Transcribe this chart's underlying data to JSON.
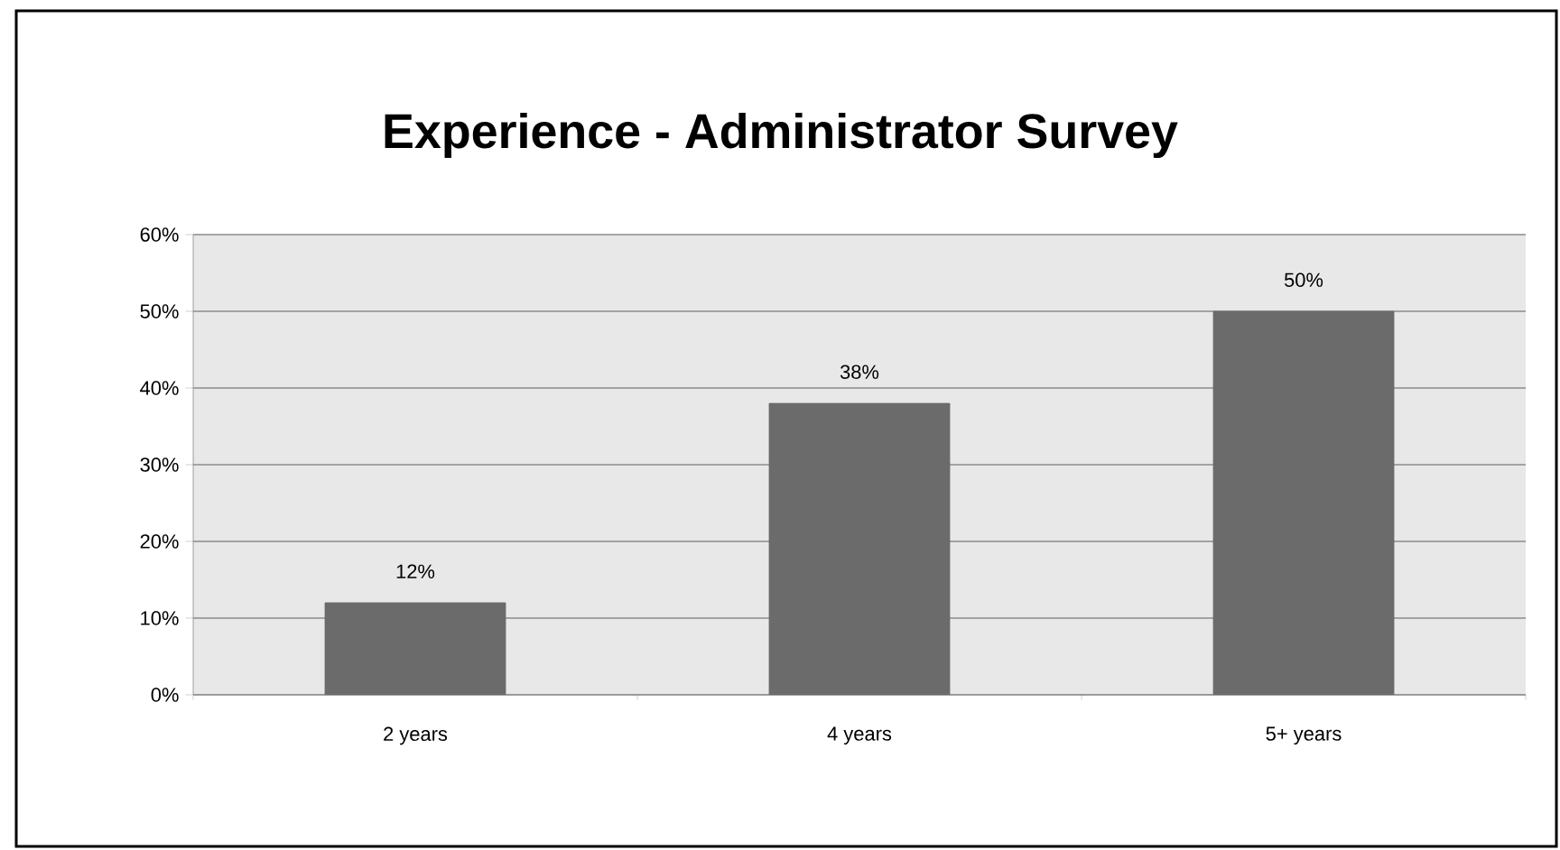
{
  "chart_data": {
    "type": "bar",
    "title": "Experience - Administrator Survey",
    "categories": [
      "2 years",
      "4  years",
      "5+ years"
    ],
    "values": [
      12,
      38,
      50
    ],
    "value_labels": [
      "12%",
      "38%",
      "50%"
    ],
    "color": "#6b6b6b",
    "ylim": [
      0,
      60
    ],
    "yticks": [
      {
        "value": 0,
        "label": "0%"
      },
      {
        "value": 10,
        "label": "10%"
      },
      {
        "value": 20,
        "label": "20%"
      },
      {
        "value": 30,
        "label": "30%"
      },
      {
        "value": 40,
        "label": "40%"
      },
      {
        "value": 50,
        "label": "50%"
      },
      {
        "value": 60,
        "label": "60%"
      }
    ],
    "grid": "y"
  }
}
